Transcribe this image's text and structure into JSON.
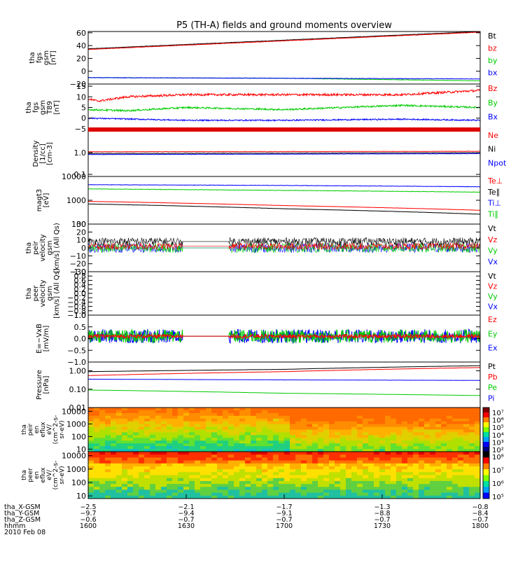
{
  "chart_data": {
    "title": "P5 (TH-A) fields and ground moments overview",
    "type": "line",
    "panels": [
      {
        "ylabel": [
          "tha",
          "fgs",
          "gsm",
          "[nT]"
        ],
        "yticks": [
          "60",
          "40",
          "20",
          "0",
          "−20"
        ],
        "ylim": [
          -20,
          62
        ],
        "legend": [
          {
            "text": "Bt",
            "color": "#000000"
          },
          {
            "text": "bz",
            "color": "#ff0000"
          },
          {
            "text": "by",
            "color": "#00cc00"
          },
          {
            "text": "bx",
            "color": "#0000ff"
          }
        ],
        "series": [
          {
            "name": "Bt",
            "color": "#000000",
            "x": [
              1600,
              1800
            ],
            "y": [
              35,
              62
            ],
            "noise": 0.3
          },
          {
            "name": "bz",
            "color": "#ff0000",
            "x": [
              1600,
              1800
            ],
            "y": [
              34,
              61
            ],
            "noise": 0.3
          },
          {
            "name": "by",
            "color": "#00cc00",
            "x": [
              1600,
              1700,
              1800
            ],
            "y": [
              -10,
              -11,
              -15
            ],
            "noise": 0.3
          },
          {
            "name": "bx",
            "color": "#0000ff",
            "x": [
              1600,
              1800
            ],
            "y": [
              -10,
              -12
            ],
            "noise": 0.4
          }
        ]
      },
      {
        "ylabel": [
          "tha",
          "fgs",
          "gsm",
          "T89",
          "[nT]"
        ],
        "yticks": [
          "15",
          "10",
          "5",
          "0",
          "−5"
        ],
        "ylim": [
          -6,
          16
        ],
        "legend": [
          {
            "text": "Bz",
            "color": "#ff0000"
          },
          {
            "text": "By",
            "color": "#00cc00"
          },
          {
            "text": "Bx",
            "color": "#0000ff"
          }
        ],
        "series": [
          {
            "name": "Bz",
            "color": "#ff0000",
            "x": [
              1600,
              1605,
              1620,
              1650,
              1700,
              1730,
              1760,
              1800
            ],
            "y": [
              9,
              8,
              10,
              11,
              11,
              11,
              11,
              13
            ],
            "noise": 0.5
          },
          {
            "name": "By",
            "color": "#00cc00",
            "x": [
              1600,
              1620,
              1650,
              1700,
              1730,
              1760,
              1800
            ],
            "y": [
              4,
              3.5,
              5,
              4,
              5,
              6,
              5
            ],
            "noise": 0.4
          },
          {
            "name": "Bx",
            "color": "#0000ff",
            "x": [
              1600,
              1650,
              1700,
              1760,
              1800
            ],
            "y": [
              0,
              -1,
              -1,
              -0.5,
              -1
            ],
            "noise": 0.3
          }
        ]
      },
      {
        "ylabel": [
          "Density",
          "[1/cc]",
          "[cm-3]"
        ],
        "yticks": [
          "1.0",
          "0.1"
        ],
        "ylim": [
          0.08,
          10
        ],
        "log": true,
        "legend": [
          {
            "text": "Ne",
            "color": "#ff0000"
          },
          {
            "text": "Ni",
            "color": "#000000"
          },
          {
            "text": "Npot",
            "color": "#0000ff"
          }
        ],
        "series": [
          {
            "name": "Ne",
            "color": "#ff0000",
            "x": [
              1600,
              1700,
              1800
            ],
            "y": [
              1.1,
              1.12,
              1.15
            ],
            "noise": 0.02
          },
          {
            "name": "Ni",
            "color": "#000000",
            "x": [
              1600,
              1700,
              1800
            ],
            "y": [
              0.92,
              0.95,
              1.0
            ],
            "noise": 0.02
          },
          {
            "name": "Npot",
            "color": "#0000ff",
            "x": [
              1600,
              1700,
              1800
            ],
            "y": [
              0.82,
              0.85,
              0.9
            ],
            "noise": 0.02
          }
        ]
      },
      {
        "ylabel": [
          "magt3",
          "[eV]"
        ],
        "yticks": [
          "10000",
          "1000",
          "100"
        ],
        "ylim": [
          100,
          10000
        ],
        "log": true,
        "legend": [
          {
            "text": "Te⊥",
            "color": "#ff0000"
          },
          {
            "text": "Te∥",
            "color": "#000000"
          },
          {
            "text": "Ti⊥",
            "color": "#0000ff"
          },
          {
            "text": "Ti∥",
            "color": "#00cc00"
          }
        ],
        "series": [
          {
            "name": "Ti⊥",
            "color": "#0000ff",
            "x": [
              1600,
              1700,
              1800
            ],
            "y": [
              4500,
              4200,
              3700
            ],
            "noise": 0.02
          },
          {
            "name": "Ti∥",
            "color": "#00cc00",
            "x": [
              1600,
              1700,
              1800
            ],
            "y": [
              3000,
              2600,
              2200
            ],
            "noise": 0.02
          },
          {
            "name": "Te⊥",
            "color": "#ff0000",
            "x": [
              1600,
              1700,
              1800
            ],
            "y": [
              900,
              600,
              380
            ],
            "noise": 0.01
          },
          {
            "name": "Te∥",
            "color": "#000000",
            "x": [
              1600,
              1700,
              1800
            ],
            "y": [
              700,
              440,
              260
            ],
            "noise": 0.01
          }
        ]
      },
      {
        "ylabel": [
          "tha",
          "peir",
          "velocity",
          "gsm",
          "[km/s] (All Qs)"
        ],
        "yticks": [
          "30",
          "20",
          "10",
          "0",
          "−10",
          "−20",
          "−30"
        ],
        "ylim": [
          -30,
          30
        ],
        "legend": [
          {
            "text": "Vt",
            "color": "#000000"
          },
          {
            "text": "Vz",
            "color": "#ff0000"
          },
          {
            "text": "Vy",
            "color": "#00cc00"
          },
          {
            "text": "Vx",
            "color": "#0000ff"
          }
        ],
        "series": [
          {
            "name": "Vx",
            "color": "#0000ff",
            "x": [
              1600,
              1800
            ],
            "y": [
              0,
              0
            ],
            "noise": 6,
            "gap": [
              1648,
              1672
            ]
          },
          {
            "name": "Vy",
            "color": "#00cc00",
            "x": [
              1600,
              1800
            ],
            "y": [
              0,
              0
            ],
            "noise": 6,
            "gap": [
              1648,
              1672
            ]
          },
          {
            "name": "Vt",
            "color": "#000000",
            "x": [
              1600,
              1800
            ],
            "y": [
              8,
              8
            ],
            "noise": 5,
            "gap": [
              1648,
              1672
            ]
          },
          {
            "name": "Vz",
            "color": "#ff0000",
            "x": [
              1600,
              1800
            ],
            "y": [
              2,
              2
            ],
            "noise": 4,
            "gap": [
              1648,
              1672
            ]
          }
        ]
      },
      {
        "ylabel": [
          "tha",
          "peer",
          "velocity",
          "gsm",
          "[km/s] (All Qs)"
        ],
        "yticks": [
          "1.0",
          "0.8",
          "0.6",
          "0.4",
          "0.2",
          "0.0",
          "−0.2",
          "−0.4",
          "−0.6",
          "−0.8",
          "−1.0"
        ],
        "ylim": [
          -1,
          1
        ],
        "legend": [
          {
            "text": "Vt",
            "color": "#000000"
          },
          {
            "text": "Vz",
            "color": "#ff0000"
          },
          {
            "text": "Vy",
            "color": "#00cc00"
          },
          {
            "text": "Vx",
            "color": "#0000ff"
          }
        ],
        "series": []
      },
      {
        "ylabel": [
          "E=−VxB",
          "[mV/m]"
        ],
        "yticks": [
          "1.0",
          "0.5",
          "0.0",
          "−0.5",
          "−1.0"
        ],
        "ylim": [
          -1,
          1
        ],
        "legend": [
          {
            "text": "Ez",
            "color": "#ff0000"
          },
          {
            "text": "Ey",
            "color": "#00cc00"
          },
          {
            "text": "Ex",
            "color": "#0000ff"
          }
        ],
        "series": [
          {
            "name": "Ex",
            "color": "#0000ff",
            "x": [
              1600,
              1800
            ],
            "y": [
              0.1,
              0.1
            ],
            "noise": 0.3,
            "gap": [
              1648,
              1672
            ]
          },
          {
            "name": "Ey",
            "color": "#00cc00",
            "x": [
              1600,
              1800
            ],
            "y": [
              0.1,
              0.1
            ],
            "noise": 0.28,
            "gap": [
              1648,
              1672
            ]
          },
          {
            "name": "Ez",
            "color": "#ff0000",
            "x": [
              1600,
              1800
            ],
            "y": [
              0.1,
              0.1
            ],
            "noise": 0.08,
            "gap": [
              1648,
              1672
            ]
          }
        ]
      },
      {
        "ylabel": [
          "Pressure",
          "[nPa]"
        ],
        "yticks": [
          "1.00",
          "0.10",
          "0.01"
        ],
        "ylim": [
          0.01,
          3
        ],
        "log": true,
        "legend": [
          {
            "text": "Pt",
            "color": "#000000"
          },
          {
            "text": "Pb",
            "color": "#ff0000"
          },
          {
            "text": "Pe",
            "color": "#00cc00"
          },
          {
            "text": "Pi",
            "color": "#0000ff"
          }
        ],
        "series": [
          {
            "name": "Pt",
            "color": "#000000",
            "x": [
              1600,
              1700,
              1800
            ],
            "y": [
              0.9,
              1.2,
              1.9
            ],
            "noise": 0.01
          },
          {
            "name": "Pb",
            "color": "#ff0000",
            "x": [
              1600,
              1700,
              1800
            ],
            "y": [
              0.55,
              0.9,
              1.5
            ],
            "noise": 0.01
          },
          {
            "name": "Pi",
            "color": "#0000ff",
            "x": [
              1600,
              1700,
              1800
            ],
            "y": [
              0.35,
              0.32,
              0.3
            ],
            "noise": 0.01
          },
          {
            "name": "Pe",
            "color": "#00cc00",
            "x": [
              1600,
              1700,
              1800
            ],
            "y": [
              0.09,
              0.06,
              0.045
            ],
            "noise": 0.005
          }
        ]
      }
    ],
    "spectrograms": [
      {
        "ylabel": [
          "tha",
          "peir",
          "en",
          "eflux",
          "eV/",
          "(cm^2-s-",
          "sr-eV)"
        ],
        "yticks": [
          "10000",
          "1000",
          "100",
          "10"
        ],
        "colorbar": [
          "10⁷",
          "10⁶",
          "10⁵",
          "10⁴",
          "10³",
          "10²"
        ]
      },
      {
        "ylabel": [
          "tha",
          "peer",
          "en",
          "eflux",
          "eV/",
          "(cm^2-s-",
          "sr-eV)"
        ],
        "yticks": [
          "10000",
          "1000",
          "100",
          "10"
        ],
        "colorbar": [
          "10⁸",
          "10⁷",
          "10⁶",
          "10⁵"
        ]
      }
    ],
    "x": {
      "range": [
        1600,
        1800
      ],
      "rows": [
        {
          "label": "tha_X-GSM",
          "values": [
            "−2.5",
            "−2.1",
            "−1.7",
            "−1.3",
            "−0.8"
          ]
        },
        {
          "label": "tha_Y-GSM",
          "values": [
            "−9.7",
            "−9.4",
            "−9.1",
            "−8.8",
            "−8.4"
          ]
        },
        {
          "label": "tha_Z-GSM",
          "values": [
            "−0.6",
            "−0.7",
            "−0.7",
            "−0.7",
            "−0.7"
          ]
        },
        {
          "label": "hhmm",
          "values": [
            "1600",
            "1630",
            "1700",
            "1730",
            "1800"
          ]
        }
      ],
      "date": "2010 Feb 08"
    }
  }
}
